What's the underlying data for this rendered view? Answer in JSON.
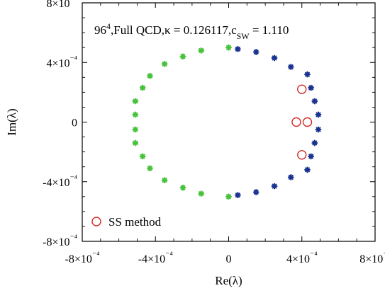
{
  "chart_data": {
    "type": "scatter",
    "title": "96⁴,Full QCD,κ = 0.126117,cₛw = 1.110",
    "xlabel": "Re(λ)",
    "ylabel": "Im(λ)",
    "xlim": [
      -0.0008,
      0.0008
    ],
    "ylim": [
      -0.0008,
      0.0008
    ],
    "x_ticks": [
      "-8×10⁻⁴",
      "-4×10⁻⁴",
      "0",
      "4×10⁻⁴",
      "8×10⁻⁴"
    ],
    "x_tick_values": [
      -0.0008,
      -0.0004,
      0,
      0.0004,
      0.0008
    ],
    "y_ticks": [
      "8×10⁻⁴",
      "4×10⁻⁴",
      "0",
      "-4×10⁻⁴",
      "-8×10⁻⁴"
    ],
    "y_tick_values": [
      0.0008,
      0.0004,
      0,
      -0.0004,
      -0.0008
    ],
    "grid": false,
    "legend_position": "bottom-left",
    "series": [
      {
        "name": "",
        "marker": "asterisk",
        "color": "#47c23c",
        "points": [
          [
            -0.0,
            0.0005
          ],
          [
            -0.00015,
            0.00048
          ],
          [
            -0.00025,
            0.00044
          ],
          [
            -0.00035,
            0.00039
          ],
          [
            -0.00043,
            0.00031
          ],
          [
            -0.00047,
            0.00023
          ],
          [
            -0.00051,
            0.00014
          ],
          [
            -0.00051,
            5e-05
          ],
          [
            -0.00051,
            -5e-05
          ],
          [
            -0.00051,
            -0.00014
          ],
          [
            -0.00047,
            -0.00023
          ],
          [
            -0.00043,
            -0.00031
          ],
          [
            -0.00035,
            -0.00039
          ],
          [
            -0.00025,
            -0.00044
          ],
          [
            -0.00015,
            -0.00048
          ],
          [
            -0.0,
            -0.0005
          ]
        ]
      },
      {
        "name": "",
        "marker": "asterisk",
        "color": "#1a3390",
        "points": [
          [
            5e-05,
            0.00049
          ],
          [
            0.00015,
            0.00047
          ],
          [
            0.00025,
            0.00043
          ],
          [
            0.00034,
            0.00037
          ],
          [
            0.00043,
            0.00032
          ],
          [
            0.00045,
            0.00023
          ],
          [
            0.00047,
            0.00014
          ],
          [
            0.00049,
            5e-05
          ],
          [
            0.00049,
            -5e-05
          ],
          [
            0.00047,
            -0.00014
          ],
          [
            0.00045,
            -0.00023
          ],
          [
            0.00043,
            -0.00032
          ],
          [
            0.00034,
            -0.00037
          ],
          [
            0.00025,
            -0.00043
          ],
          [
            0.00015,
            -0.00047
          ],
          [
            5e-05,
            -0.00049
          ]
        ]
      },
      {
        "name": "SS method",
        "marker": "circle",
        "color": "#d22a25",
        "points": [
          [
            0.0004,
            0.00022
          ],
          [
            0.00037,
            0.0
          ],
          [
            0.00043,
            0.0
          ],
          [
            0.0004,
            -0.00022
          ]
        ]
      }
    ]
  }
}
